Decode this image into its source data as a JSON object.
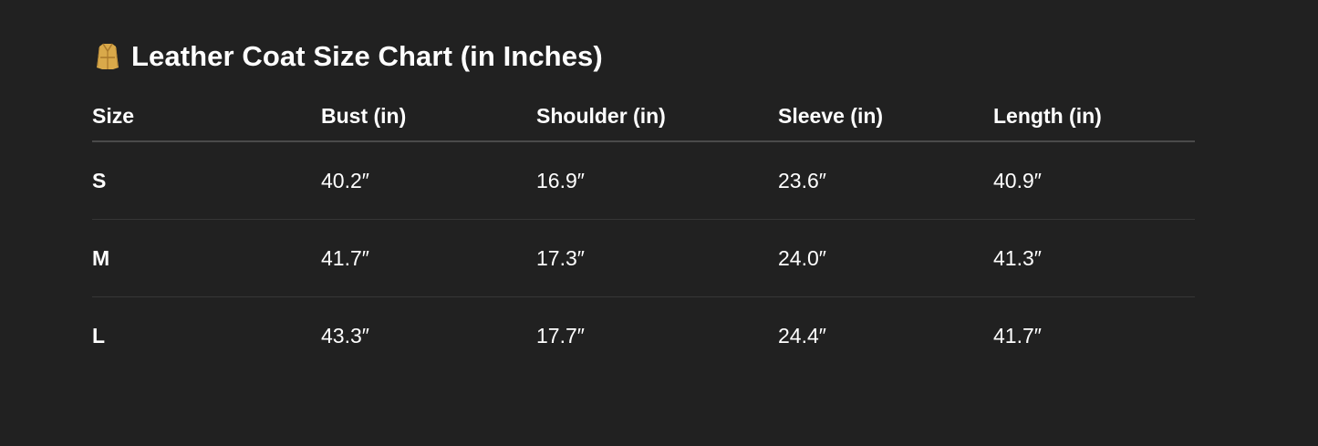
{
  "title": {
    "icon": "coat-emoji-icon",
    "text": "Leather Coat Size Chart (in Inches)"
  },
  "table": {
    "headers": [
      "Size",
      "Bust (in)",
      "Shoulder (in)",
      "Sleeve (in)",
      "Length (in)"
    ],
    "rows": [
      [
        "S",
        "40.2″",
        "16.9″",
        "23.6″",
        "40.9″"
      ],
      [
        "M",
        "41.7″",
        "17.3″",
        "24.0″",
        "41.3″"
      ],
      [
        "L",
        "43.3″",
        "17.7″",
        "24.4″",
        "41.7″"
      ]
    ]
  },
  "colors": {
    "background": "#212121",
    "text": "#ffffff",
    "icon": "#d9a94a"
  }
}
